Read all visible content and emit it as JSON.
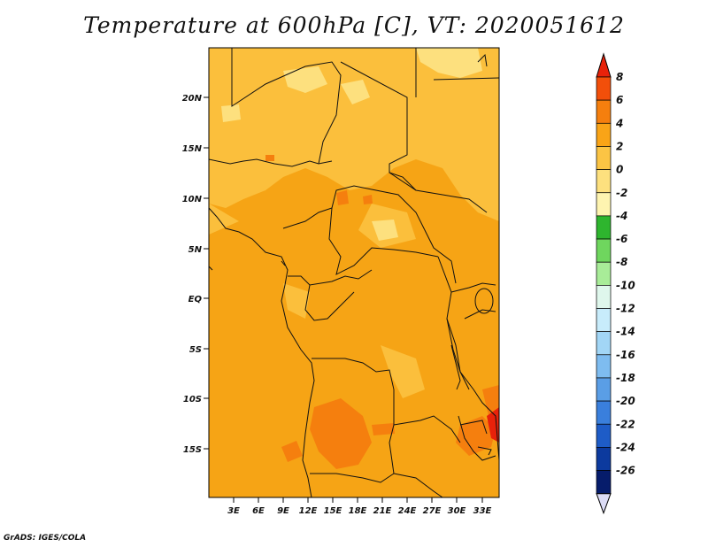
{
  "title": "Temperature at 600hPa [C], VT: 2020051612",
  "credit": "GrADS: IGES/COLA",
  "map": {
    "lat_ticks": [
      "20N",
      "15N",
      "10N",
      "5N",
      "EQ",
      "5S",
      "10S",
      "15S"
    ],
    "lon_ticks": [
      "3E",
      "6E",
      "9E",
      "12E",
      "15E",
      "18E",
      "21E",
      "24E",
      "27E",
      "30E",
      "33E"
    ]
  },
  "colorbar": {
    "labels": [
      "8",
      "6",
      "4",
      "2",
      "0",
      "-2",
      "-4",
      "-6",
      "-8",
      "-10",
      "-12",
      "-14",
      "-16",
      "-18",
      "-20",
      "-22",
      "-24",
      "-26"
    ],
    "colors": [
      "#e8220a",
      "#f24f0a",
      "#f57f0e",
      "#f9a417",
      "#fbc444",
      "#fde07e",
      "#fef4b0",
      "#2eb52e",
      "#6fd65e",
      "#a8ec98",
      "#dff7ec",
      "#c8ecfb",
      "#a2d6f6",
      "#7ebcf0",
      "#5a9ee6",
      "#3a7fdc",
      "#1e5cc7",
      "#0c3a9e",
      "#061c6b",
      "#dcdcf6"
    ]
  }
}
